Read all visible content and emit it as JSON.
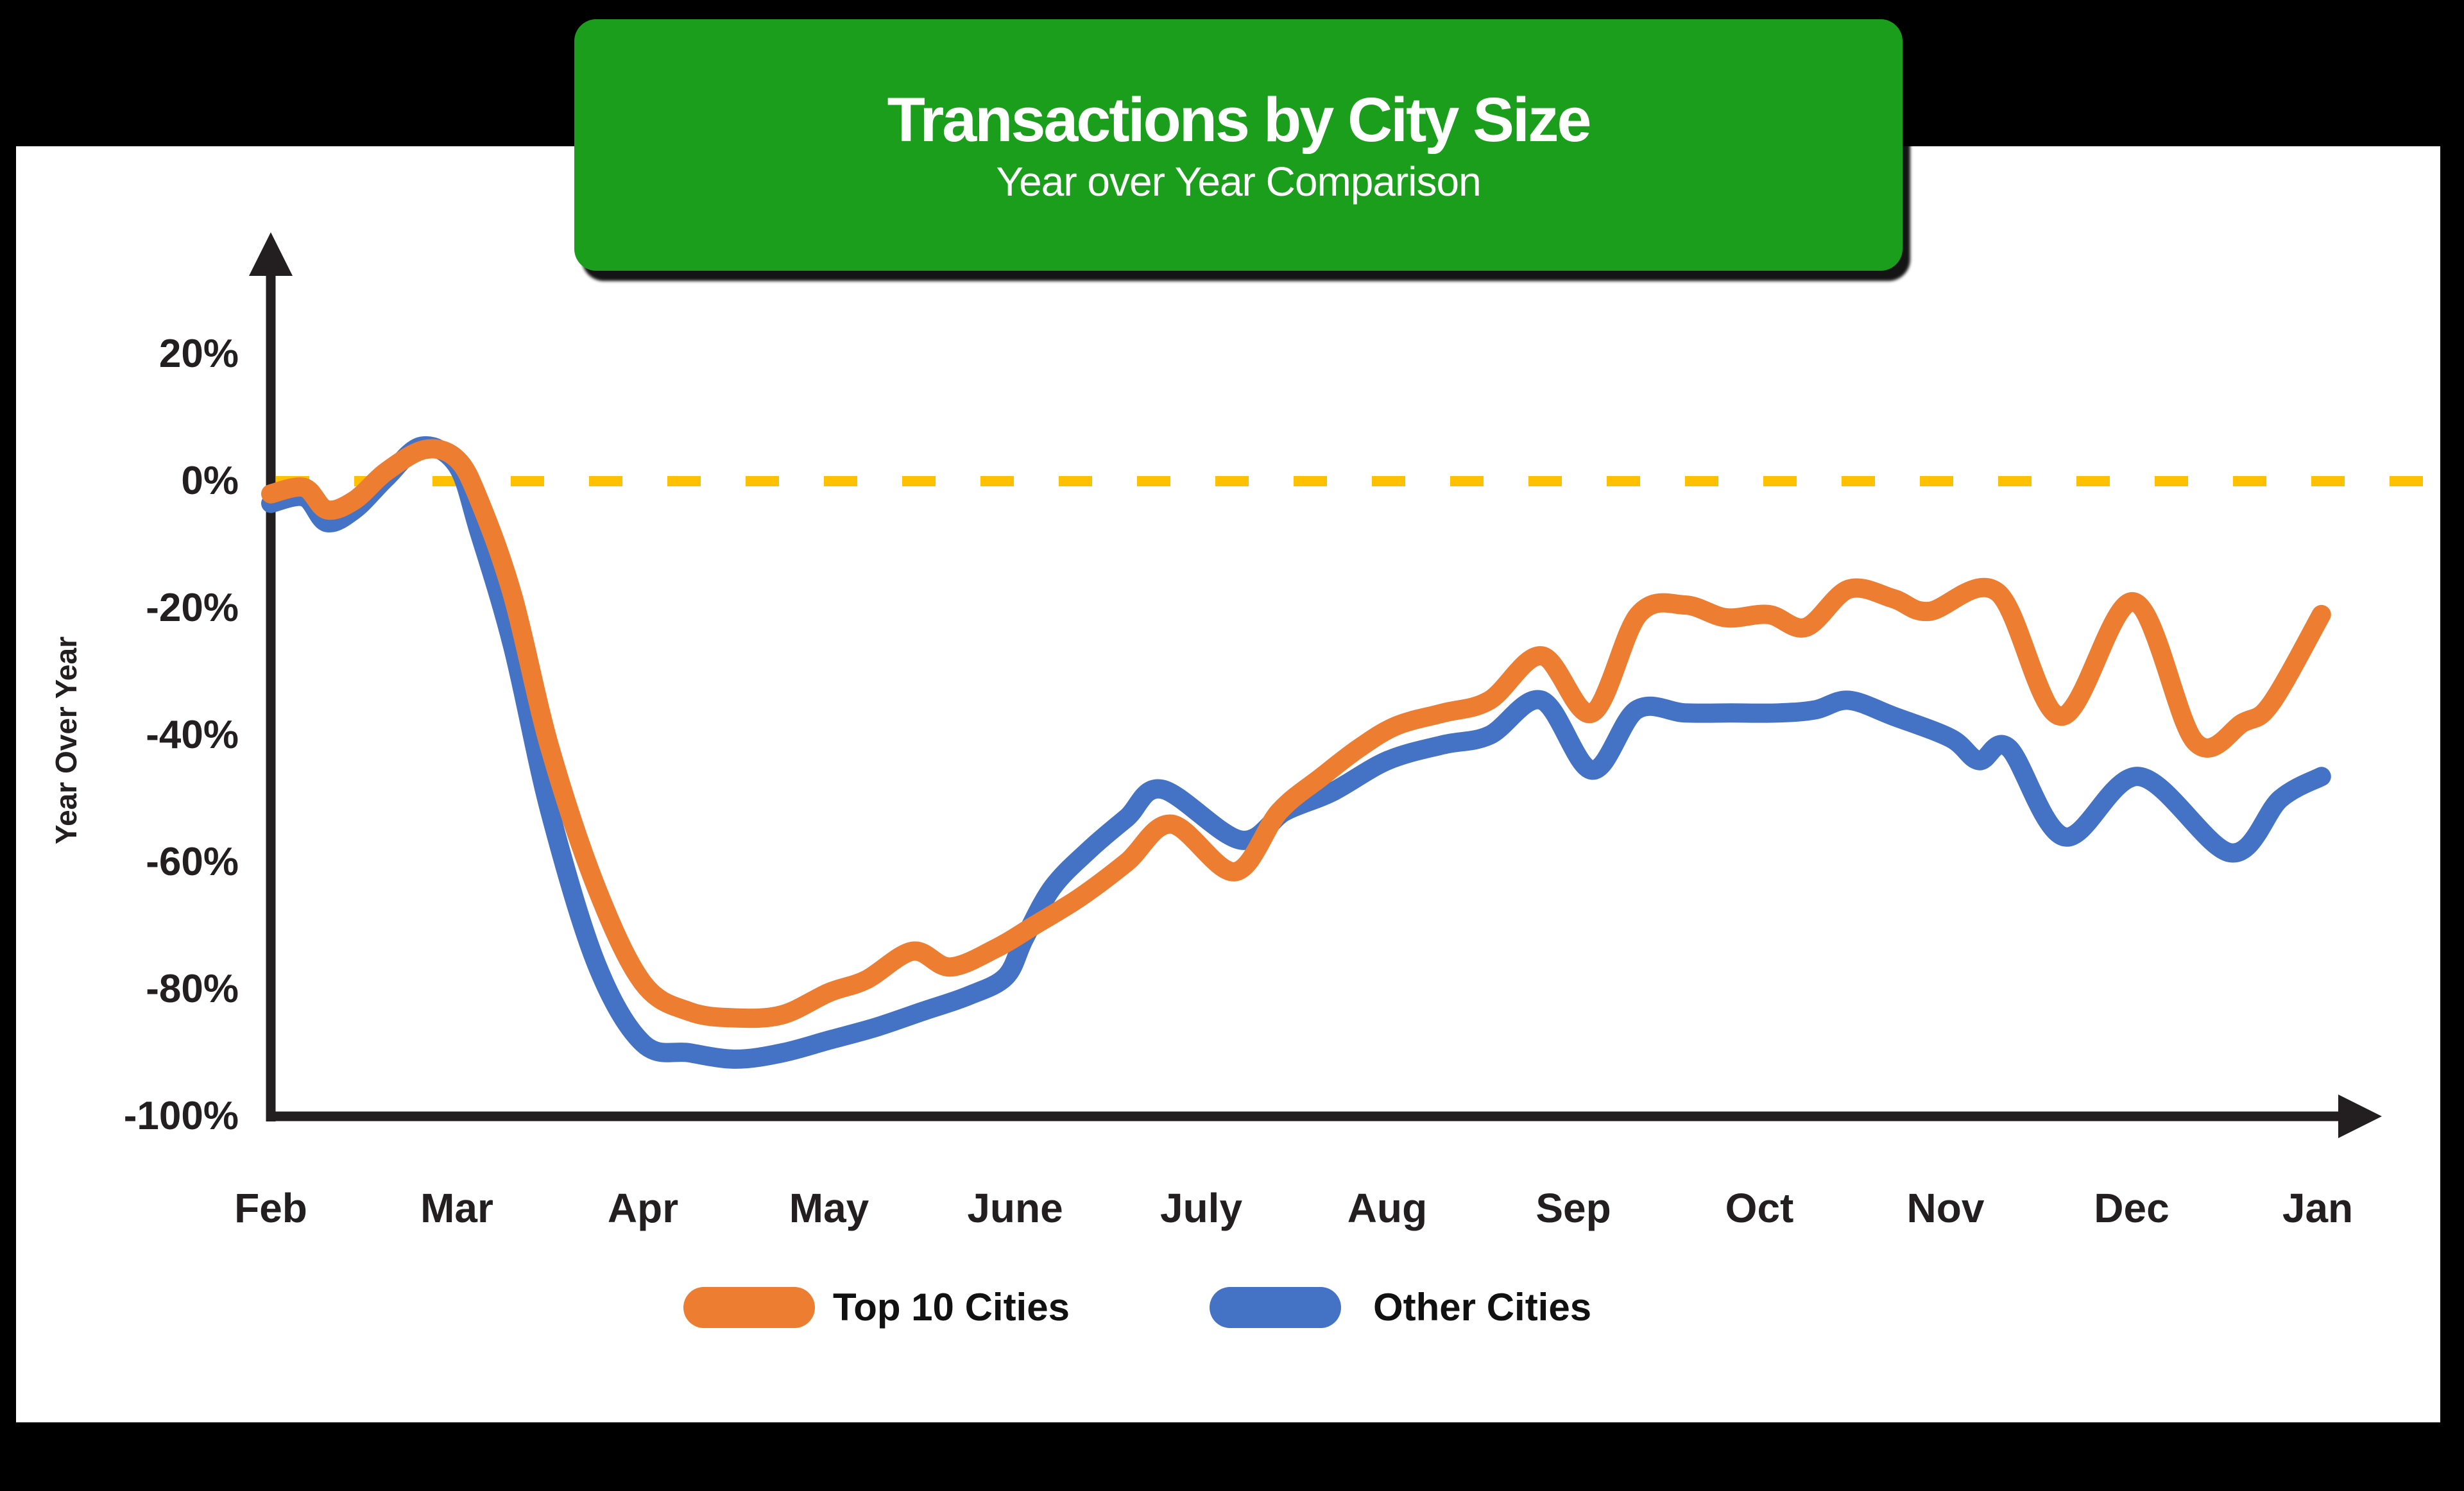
{
  "page": {
    "background": "#000000",
    "panel_background": "#ffffff"
  },
  "title_box": {
    "title": "Transactions by City Size",
    "subtitle": "Year over Year Comparison",
    "bg_color": "#1B9E1B",
    "text_color": "#ffffff"
  },
  "chart_data": {
    "type": "line",
    "title": "Transactions by City Size",
    "subtitle": "Year over Year Comparison",
    "xlabel": "",
    "ylabel": "Year Over Year",
    "x_categories": [
      "Feb",
      "Mar",
      "Apr",
      "May",
      "June",
      "July",
      "Aug",
      "Sep",
      "Oct",
      "Nov",
      "Dec",
      "Jan"
    ],
    "y_ticks": [
      {
        "label": "20%",
        "value": 20
      },
      {
        "label": "0%",
        "value": 0
      },
      {
        "label": "-20%",
        "value": -20
      },
      {
        "label": "-40%",
        "value": -40
      },
      {
        "label": "-60%",
        "value": -60
      },
      {
        "label": "-80%",
        "value": -80
      },
      {
        "label": "-100%",
        "value": -100
      }
    ],
    "ylim": [
      -100,
      28
    ],
    "grid": "off",
    "zero_reference_line": {
      "value": 0,
      "style": "dashed",
      "color": "#FFC000"
    },
    "axis_color": "#231F20",
    "legend_position": "bottom",
    "legend": [
      {
        "label": "Top 10 Cities",
        "color": "#ED7D31"
      },
      {
        "label": "Other Cities",
        "color": "#4472C4"
      }
    ],
    "x_unit_note": "x = month index, 0 = Feb through 11 = Jan; y = percent year-over-year",
    "series": [
      {
        "name": "Top 10 Cities",
        "color": "#ED7D31",
        "points": [
          [
            0.0,
            -2
          ],
          [
            0.18,
            -1
          ],
          [
            0.3,
            -4.5
          ],
          [
            0.45,
            -3
          ],
          [
            0.62,
            1.5
          ],
          [
            0.83,
            5
          ],
          [
            1.0,
            3.5
          ],
          [
            1.12,
            -3
          ],
          [
            1.3,
            -18
          ],
          [
            1.5,
            -42
          ],
          [
            1.75,
            -64
          ],
          [
            2.0,
            -79
          ],
          [
            2.25,
            -83.5
          ],
          [
            2.5,
            -84.5
          ],
          [
            2.75,
            -84
          ],
          [
            3.0,
            -80.5
          ],
          [
            3.2,
            -78.5
          ],
          [
            3.45,
            -74
          ],
          [
            3.65,
            -76.5
          ],
          [
            3.9,
            -73.5
          ],
          [
            4.1,
            -70
          ],
          [
            4.35,
            -65.5
          ],
          [
            4.6,
            -60
          ],
          [
            4.84,
            -54
          ],
          [
            5.18,
            -61.5
          ],
          [
            5.42,
            -52
          ],
          [
            5.65,
            -46.5
          ],
          [
            5.85,
            -42
          ],
          [
            6.05,
            -38.5
          ],
          [
            6.3,
            -36.5
          ],
          [
            6.55,
            -34.5
          ],
          [
            6.83,
            -27.5
          ],
          [
            7.1,
            -36.5
          ],
          [
            7.35,
            -21
          ],
          [
            7.6,
            -19.5
          ],
          [
            7.82,
            -21.5
          ],
          [
            8.05,
            -21
          ],
          [
            8.25,
            -23
          ],
          [
            8.48,
            -17
          ],
          [
            8.72,
            -18.5
          ],
          [
            8.91,
            -20.5
          ],
          [
            9.28,
            -17.5
          ],
          [
            9.62,
            -37
          ],
          [
            10.01,
            -19
          ],
          [
            10.34,
            -41
          ],
          [
            10.6,
            -38
          ],
          [
            10.75,
            -35
          ],
          [
            11.02,
            -21
          ]
        ]
      },
      {
        "name": "Other Cities",
        "color": "#4472C4",
        "points": [
          [
            0.0,
            -3.5
          ],
          [
            0.18,
            -2.5
          ],
          [
            0.3,
            -6.5
          ],
          [
            0.45,
            -4.5
          ],
          [
            0.62,
            0.5
          ],
          [
            0.81,
            5.5
          ],
          [
            1.0,
            2.5
          ],
          [
            1.12,
            -8
          ],
          [
            1.3,
            -26
          ],
          [
            1.5,
            -52
          ],
          [
            1.75,
            -76
          ],
          [
            2.0,
            -88.5
          ],
          [
            2.25,
            -90
          ],
          [
            2.5,
            -91
          ],
          [
            2.75,
            -90
          ],
          [
            3.0,
            -88
          ],
          [
            3.25,
            -86
          ],
          [
            3.5,
            -83.5
          ],
          [
            3.75,
            -81
          ],
          [
            3.95,
            -78
          ],
          [
            4.05,
            -72
          ],
          [
            4.2,
            -64
          ],
          [
            4.4,
            -58
          ],
          [
            4.6,
            -53
          ],
          [
            4.79,
            -48.5
          ],
          [
            5.21,
            -56.5
          ],
          [
            5.45,
            -52
          ],
          [
            5.7,
            -49
          ],
          [
            6.0,
            -44
          ],
          [
            6.3,
            -41.5
          ],
          [
            6.55,
            -40
          ],
          [
            6.83,
            -34.5
          ],
          [
            7.1,
            -45.5
          ],
          [
            7.34,
            -36
          ],
          [
            7.6,
            -36.5
          ],
          [
            7.85,
            -36.5
          ],
          [
            8.1,
            -36.5
          ],
          [
            8.3,
            -36
          ],
          [
            8.48,
            -34.5
          ],
          [
            8.72,
            -37
          ],
          [
            9.03,
            -40.5
          ],
          [
            9.18,
            -44
          ],
          [
            9.34,
            -42
          ],
          [
            9.64,
            -56
          ],
          [
            10.04,
            -46.5
          ],
          [
            10.53,
            -58.5
          ],
          [
            10.8,
            -50
          ],
          [
            11.02,
            -46.5
          ]
        ]
      }
    ]
  }
}
